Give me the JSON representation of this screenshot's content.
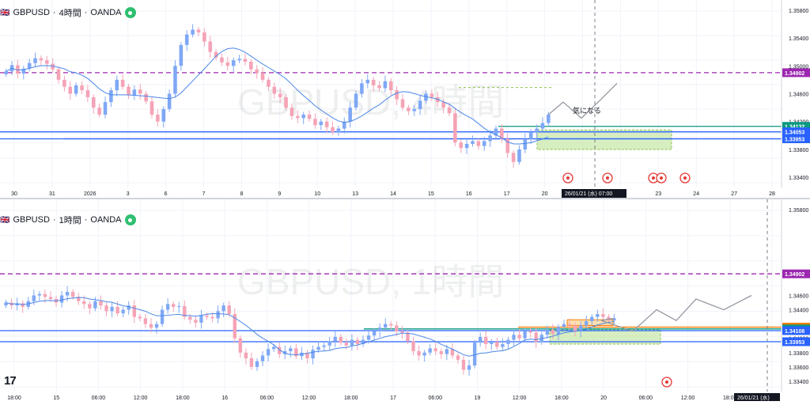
{
  "top_panel": {
    "header": {
      "symbol": "GBPUSD",
      "timeframe": "4時間",
      "broker": "OANDA",
      "sep": "·"
    },
    "watermark": "GBPUSD, 4時間",
    "annotation": "気になる",
    "crosshair_label": "26/01/21 (水)   07:00",
    "price_ticks": [
      "1.35800",
      "1.35400",
      "1.35000",
      "1.34600",
      "1.34200",
      "1.33800",
      "1.33400"
    ],
    "price_labels": [
      {
        "text": "1.34902",
        "price": 1.34902,
        "color": "#9c27b0"
      },
      {
        "text": "1.34132",
        "price": 1.34132,
        "color": "#089981"
      },
      {
        "text": "1.34053",
        "price": 1.34053,
        "color": "#2962ff"
      },
      {
        "text": "1.33953",
        "price": 1.33953,
        "color": "#2962ff"
      }
    ],
    "x_labels": [
      "30",
      "31",
      "2026",
      "3",
      "6",
      "7",
      "8",
      "9",
      "10",
      "13",
      "14",
      "15",
      "16",
      "17",
      "20",
      "21",
      "22",
      "23",
      "24",
      "27",
      "28"
    ]
  },
  "bottom_panel": {
    "header": {
      "symbol": "GBPUSD",
      "timeframe": "1時間",
      "broker": "OANDA",
      "sep": "·"
    },
    "watermark": "GBPUSD, 1時間",
    "crosshair_label": "26/01/21 (水)",
    "price_ticks": [
      "1.35800",
      "1.34600",
      "1.34400",
      "1.34000",
      "1.33800",
      "1.33600",
      "1.33400"
    ],
    "price_labels": [
      {
        "text": "1.34902",
        "price": 1.34902,
        "color": "#9c27b0"
      },
      {
        "text": "1.34157",
        "price": 1.34157,
        "color": "#f57c00"
      },
      {
        "text": "1.34132",
        "price": 1.34132,
        "color": "#089981"
      },
      {
        "text": "1.34108",
        "price": 1.34108,
        "color": "#2962ff"
      },
      {
        "text": "1.33953",
        "price": 1.33953,
        "color": "#2962ff"
      }
    ],
    "x_labels": [
      "18:00",
      "15",
      "06:00",
      "12:00",
      "18:00",
      "16",
      "06:00",
      "12:00",
      "18:00",
      "17",
      "06:00",
      "19",
      "12:00",
      "18:00",
      "20",
      "06:00",
      "12:00",
      "18:00",
      "21"
    ]
  },
  "logo_text": "17",
  "colors": {
    "up": "#7fa8f5",
    "down": "#f5a3b6",
    "ma": "#4a86e8",
    "purple": "#9c27b0",
    "teal": "#089981",
    "blue": "#2962ff",
    "zone": "#c6e7a6",
    "orange": "#f57c00"
  },
  "chart_data": [
    {
      "type": "candlestick",
      "symbol": "GBPUSD",
      "timeframe": "4時間",
      "ylim": [
        1.333,
        1.359
      ],
      "horizontal_lines": [
        1.34902,
        1.34132,
        1.34053,
        1.33953
      ],
      "closes": [
        1.3492,
        1.3501,
        1.3489,
        1.3496,
        1.3504,
        1.3511,
        1.3508,
        1.3503,
        1.3495,
        1.348,
        1.347,
        1.346,
        1.3472,
        1.3465,
        1.3455,
        1.344,
        1.343,
        1.3448,
        1.3465,
        1.348,
        1.347,
        1.3458,
        1.3466,
        1.346,
        1.3449,
        1.343,
        1.342,
        1.3438,
        1.346,
        1.35,
        1.353,
        1.3545,
        1.3552,
        1.3548,
        1.3535,
        1.352,
        1.3512,
        1.3505,
        1.35,
        1.3508,
        1.351,
        1.3506,
        1.3495,
        1.349,
        1.348,
        1.347,
        1.346,
        1.3455,
        1.344,
        1.3428,
        1.3425,
        1.343,
        1.3424,
        1.3415,
        1.342,
        1.3412,
        1.3405,
        1.341,
        1.342,
        1.344,
        1.346,
        1.3475,
        1.348,
        1.3472,
        1.3468,
        1.3478,
        1.3465,
        1.3452,
        1.344,
        1.3435,
        1.3438,
        1.345,
        1.346,
        1.3455,
        1.3448,
        1.344,
        1.3432,
        1.339,
        1.3382,
        1.3388,
        1.3392,
        1.3385,
        1.3392,
        1.34,
        1.341,
        1.3395,
        1.3375,
        1.3362,
        1.338,
        1.3395,
        1.3405,
        1.341,
        1.3418,
        1.343
      ]
    },
    {
      "type": "candlestick",
      "symbol": "GBPUSD",
      "timeframe": "1時間",
      "ylim": [
        1.333,
        1.359
      ],
      "horizontal_lines": [
        1.34902,
        1.34157,
        1.34132,
        1.34108,
        1.33953
      ],
      "closes": [
        1.345,
        1.3446,
        1.3449,
        1.3444,
        1.3452,
        1.346,
        1.3462,
        1.3458,
        1.3455,
        1.345,
        1.346,
        1.3465,
        1.3458,
        1.3452,
        1.3448,
        1.3442,
        1.3452,
        1.3446,
        1.3438,
        1.3444,
        1.3435,
        1.344,
        1.3446,
        1.343,
        1.3428,
        1.342,
        1.3415,
        1.342,
        1.344,
        1.3448,
        1.3444,
        1.3445,
        1.343,
        1.3426,
        1.3422,
        1.3432,
        1.343,
        1.3428,
        1.3438,
        1.3446,
        1.3434,
        1.34,
        1.338,
        1.3372,
        1.336,
        1.3368,
        1.3376,
        1.3385,
        1.3388,
        1.3378,
        1.3382,
        1.3386,
        1.3375,
        1.338,
        1.3372,
        1.3384,
        1.3388,
        1.339,
        1.3396,
        1.3402,
        1.3394,
        1.339,
        1.3398,
        1.3392,
        1.3398,
        1.3404,
        1.341,
        1.3415,
        1.342,
        1.3418,
        1.341,
        1.3408,
        1.3396,
        1.3382,
        1.3376,
        1.338,
        1.3386,
        1.3382,
        1.3378,
        1.3385,
        1.3376,
        1.337,
        1.3356,
        1.3362,
        1.3394,
        1.3402,
        1.3392,
        1.3395,
        1.3388,
        1.3392,
        1.3398,
        1.3405,
        1.34,
        1.341,
        1.3408,
        1.3395,
        1.3405,
        1.3412,
        1.3406,
        1.3416,
        1.342,
        1.3418,
        1.341,
        1.3418,
        1.3424,
        1.343,
        1.3434,
        1.343,
        1.3425,
        1.3428
      ]
    }
  ]
}
